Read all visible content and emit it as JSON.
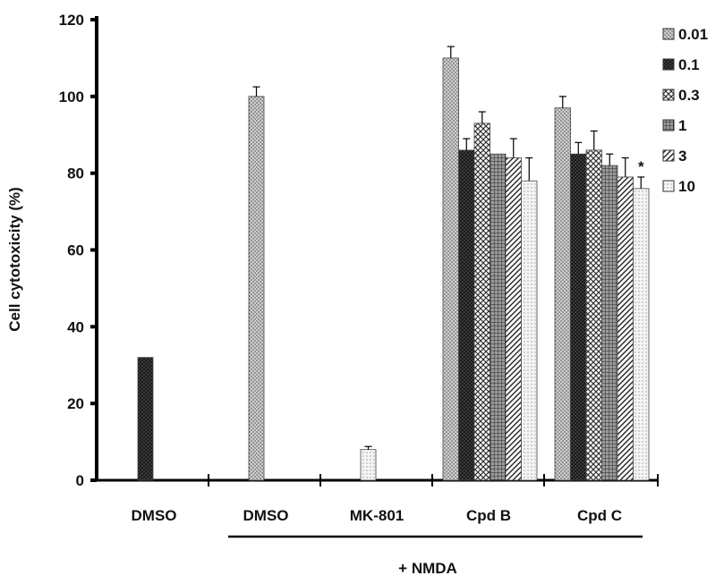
{
  "chart_data": {
    "type": "bar",
    "ylabel": "Cell cytotoxicity (%)",
    "ylim": [
      0,
      120
    ],
    "yticks": [
      0,
      20,
      40,
      60,
      80,
      100,
      120
    ],
    "categories": [
      "DMSO",
      "DMSO",
      "MK-801",
      "Cpd B",
      "Cpd C"
    ],
    "group_label": "+ NMDA",
    "legend": [
      "0.01",
      "0.1",
      "0.3",
      "1",
      "3",
      "10"
    ],
    "bars": [
      {
        "category": 0,
        "value": 32,
        "error": 0,
        "pattern": "dark"
      },
      {
        "category": 1,
        "value": 100,
        "error": 2.5,
        "pattern": "dots"
      },
      {
        "category": 2,
        "value": 8,
        "error": 0.8,
        "pattern": "light"
      },
      {
        "category": 3,
        "series": "0.01",
        "value": 110,
        "error": 3,
        "pattern": "dots"
      },
      {
        "category": 3,
        "series": "0.1",
        "value": 86,
        "error": 3,
        "pattern": "dark"
      },
      {
        "category": 3,
        "series": "0.3",
        "value": 93,
        "error": 3,
        "pattern": "cross"
      },
      {
        "category": 3,
        "series": "1",
        "value": 85,
        "error": 0,
        "pattern": "grid"
      },
      {
        "category": 3,
        "series": "3",
        "value": 84,
        "error": 5,
        "pattern": "diag"
      },
      {
        "category": 3,
        "series": "10",
        "value": 78,
        "error": 6,
        "pattern": "light"
      },
      {
        "category": 4,
        "series": "0.01",
        "value": 97,
        "error": 3,
        "pattern": "dots"
      },
      {
        "category": 4,
        "series": "0.1",
        "value": 85,
        "error": 3,
        "pattern": "dark"
      },
      {
        "category": 4,
        "series": "0.3",
        "value": 86,
        "error": 5,
        "pattern": "cross"
      },
      {
        "category": 4,
        "series": "1",
        "value": 82,
        "error": 3,
        "pattern": "grid"
      },
      {
        "category": 4,
        "series": "3",
        "value": 79,
        "error": 5,
        "pattern": "diag"
      },
      {
        "category": 4,
        "series": "10",
        "value": 76,
        "error": 3,
        "pattern": "light"
      }
    ],
    "annotations": [
      {
        "category": 4,
        "series": "10",
        "text": "*"
      }
    ]
  }
}
